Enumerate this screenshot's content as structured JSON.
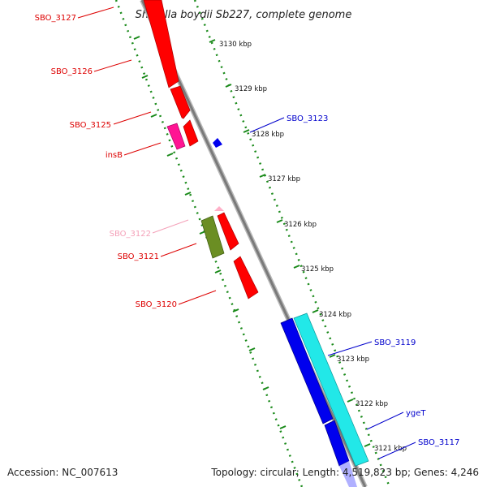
{
  "title": "Shigella boydii Sb227, complete genome",
  "footer": {
    "accession": "Accession: NC_007613",
    "summary": "Topology: circular; Length: 4,519,823 bp; Genes: 4,246"
  },
  "ticks": [
    "3130 kbp",
    "3129 kbp",
    "3128 kbp",
    "3127 kbp",
    "3126 kbp",
    "3125 kbp",
    "3124 kbp",
    "3123 kbp",
    "3122 kbp",
    "3121 kbp"
  ],
  "gene_labels": [
    {
      "text": "SBO_3127",
      "color": "#dd0000"
    },
    {
      "text": "SBO_3126",
      "color": "#dd0000"
    },
    {
      "text": "SBO_3125",
      "color": "#dd0000"
    },
    {
      "text": "insB",
      "color": "#dd0000"
    },
    {
      "text": "SBO_3122",
      "color": "#f4a0b8"
    },
    {
      "text": "SBO_3121",
      "color": "#dd0000"
    },
    {
      "text": "SBO_3120",
      "color": "#dd0000"
    },
    {
      "text": "SBO_3123",
      "color": "#0000cc"
    },
    {
      "text": "SBO_3119",
      "color": "#0000cc"
    },
    {
      "text": "ygeT",
      "color": "#0000cc"
    },
    {
      "text": "SBO_3117",
      "color": "#0000cc"
    }
  ],
  "colors": {
    "backbone": "#8a8a8a",
    "ruler": "#1a8a1a",
    "cds_forward": "#ff0000",
    "insertion": "#ff1493",
    "cds_reverse": "#0000ee",
    "cyan_gene": "#22e8e8",
    "olive_gene": "#6b8e23",
    "pink_gene": "#ffb0c8"
  }
}
